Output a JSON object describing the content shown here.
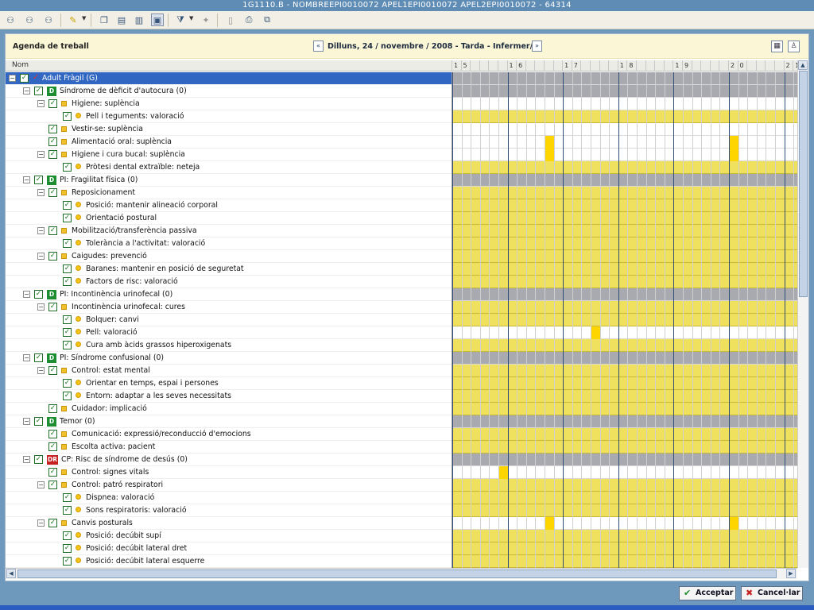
{
  "window": {
    "title": "1G1110.B - NOMBREEPI0010072 APEL1EPI0010072 APEL2EPI0010072 - 64314"
  },
  "toolbar": {
    "icons": [
      "user-tree-icon",
      "user-tree-add-icon",
      "user-tree-remove-icon",
      "pencil-icon",
      "copy-icon",
      "paste-icon",
      "book-icon",
      "view-icon",
      "filter-icon",
      "pin-icon",
      "document-icon",
      "print-icon"
    ]
  },
  "header": {
    "title": "Agenda de treball",
    "prev": "«",
    "next": "»",
    "date": "Dilluns, 24 / novembre / 2008 - Tarda - Infermer/a"
  },
  "columns": {
    "nom": "Nom",
    "hours": [
      "1",
      "5",
      "",
      "",
      "",
      "",
      "1",
      "6",
      "",
      "",
      "",
      "",
      "1",
      "7",
      "",
      "",
      "",
      "",
      "1",
      "8",
      "",
      "",
      "",
      "",
      "1",
      "9",
      "",
      "",
      "",
      "",
      "2",
      "0",
      "",
      "",
      "",
      "",
      "2",
      "1"
    ]
  },
  "rows": [
    {
      "level": 0,
      "label": "Adult Fràgil (G)",
      "selected": true,
      "exp": "⊟",
      "tag": "check"
    },
    {
      "level": 1,
      "label": "Síndrome de dèficit d'autocura (0)",
      "exp": "⊟",
      "tag": "D"
    },
    {
      "level": 2,
      "label": "Higiene: suplència",
      "exp": "⊟",
      "icon": "sq"
    },
    {
      "level": 3,
      "label": "Pell i teguments: valoració",
      "icon": "dot"
    },
    {
      "level": 2,
      "label": "Vestir-se: suplència",
      "icon": "sq"
    },
    {
      "level": 2,
      "label": "Alimentació oral: suplència",
      "icon": "sq"
    },
    {
      "level": 2,
      "label": "Higiene i cura bucal: suplència",
      "exp": "⊟",
      "icon": "sq"
    },
    {
      "level": 3,
      "label": "Pròtesi dental extraïble: neteja",
      "icon": "dot"
    },
    {
      "level": 1,
      "label": "PI: Fragilitat física (0)",
      "exp": "⊟",
      "tag": "D"
    },
    {
      "level": 2,
      "label": "Reposicionament",
      "exp": "⊟",
      "icon": "sq"
    },
    {
      "level": 3,
      "label": "Posició: mantenir alineació corporal",
      "icon": "dot"
    },
    {
      "level": 3,
      "label": "Orientació postural",
      "icon": "dot"
    },
    {
      "level": 2,
      "label": "Mobilització/transferència passiva",
      "exp": "⊟",
      "icon": "sq"
    },
    {
      "level": 3,
      "label": "Tolerància a l'activitat: valoració",
      "icon": "dot"
    },
    {
      "level": 2,
      "label": "Caigudes: prevenció",
      "exp": "⊟",
      "icon": "sq"
    },
    {
      "level": 3,
      "label": "Baranes: mantenir en posició de seguretat",
      "icon": "dot"
    },
    {
      "level": 3,
      "label": "Factors de risc: valoració",
      "icon": "dot"
    },
    {
      "level": 1,
      "label": "PI: Incontinència urinofecal (0)",
      "exp": "⊟",
      "tag": "D"
    },
    {
      "level": 2,
      "label": "Incontinència urinofecal: cures",
      "exp": "⊟",
      "icon": "sq"
    },
    {
      "level": 3,
      "label": "Bolquer: canvi",
      "icon": "dot"
    },
    {
      "level": 3,
      "label": "Pell: valoració",
      "icon": "dot"
    },
    {
      "level": 3,
      "label": "Cura amb àcids grassos hiperoxigenats",
      "icon": "dot"
    },
    {
      "level": 1,
      "label": "PI: Síndrome confusional (0)",
      "exp": "⊟",
      "tag": "D"
    },
    {
      "level": 2,
      "label": "Control: estat mental",
      "exp": "⊟",
      "icon": "sq"
    },
    {
      "level": 3,
      "label": "Orientar en temps, espai i persones",
      "icon": "dot"
    },
    {
      "level": 3,
      "label": "Entorn: adaptar a les seves necessitats",
      "icon": "dot"
    },
    {
      "level": 2,
      "label": "Cuidador: implicació",
      "icon": "sq"
    },
    {
      "level": 1,
      "label": "Temor (0)",
      "exp": "⊟",
      "tag": "D"
    },
    {
      "level": 2,
      "label": "Comunicació: expressió/reconducció d'emocions",
      "icon": "sq"
    },
    {
      "level": 2,
      "label": "Escolta activa: pacient",
      "icon": "sq"
    },
    {
      "level": 1,
      "label": "CP: Risc de síndrome de desús (0)",
      "exp": "⊟",
      "tag": "DR"
    },
    {
      "level": 2,
      "label": "Control: signes vitals",
      "icon": "sq"
    },
    {
      "level": 2,
      "label": "Control: patró respiratori",
      "exp": "⊟",
      "icon": "sq"
    },
    {
      "level": 3,
      "label": "Dispnea: valoració",
      "icon": "dot"
    },
    {
      "level": 3,
      "label": "Sons respiratoris: valoració",
      "icon": "dot"
    },
    {
      "level": 2,
      "label": "Canvis posturals",
      "exp": "⊟",
      "icon": "sq"
    },
    {
      "level": 3,
      "label": "Posició: decúbit supí",
      "icon": "dot"
    },
    {
      "level": 3,
      "label": "Posició: decúbit lateral dret",
      "icon": "dot"
    },
    {
      "level": 3,
      "label": "Posició: decúbit lateral esquerre",
      "icon": "dot"
    }
  ],
  "schedule": {
    "row_types": [
      "gray",
      "gray",
      "white",
      "yellow",
      "white",
      "white",
      "white",
      "yellow",
      "gray",
      "yellow",
      "yellow",
      "yellow",
      "yellow",
      "yellow",
      "yellow",
      "yellow",
      "yellow",
      "gray",
      "yellow",
      "yellow",
      "white",
      "yellow",
      "gray",
      "yellow",
      "yellow",
      "yellow",
      "yellow",
      "gray",
      "yellow",
      "yellow",
      "gray",
      "white",
      "yellow",
      "yellow",
      "yellow",
      "white",
      "yellow",
      "yellow",
      "yellow"
    ],
    "marks": [
      {
        "row": 5,
        "cols": [
          10,
          30
        ]
      },
      {
        "row": 6,
        "cols": [
          10,
          30
        ]
      },
      {
        "row": 20,
        "cols": [
          15
        ]
      },
      {
        "row": 31,
        "cols": [
          5
        ]
      },
      {
        "row": 35,
        "cols": [
          10,
          30
        ]
      }
    ]
  },
  "buttons": {
    "accept": "Acceptar",
    "cancel": "Cancel·lar"
  }
}
